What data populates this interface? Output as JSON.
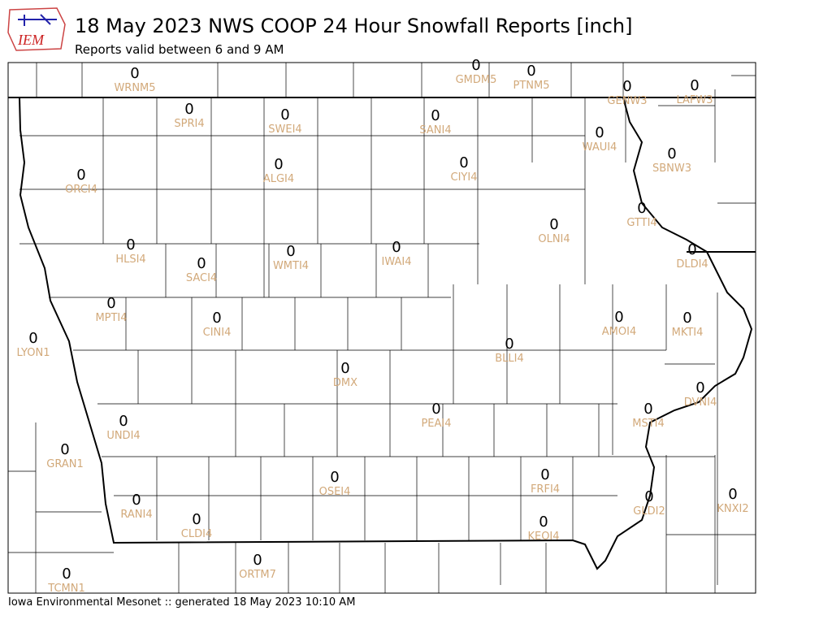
{
  "header": {
    "logo": "IEM",
    "title": "18 May 2023 NWS COOP 24 Hour Snowfall Reports [inch]",
    "subtitle": "Reports valid between 6 and 9 AM"
  },
  "stations": [
    {
      "id": "WRNM5",
      "value": 0
    },
    {
      "id": "GMDM5",
      "value": 0
    },
    {
      "id": "PTNM5",
      "value": 0
    },
    {
      "id": "GENW3",
      "value": 0
    },
    {
      "id": "LAFW3",
      "value": 0
    },
    {
      "id": "SPRI4",
      "value": 0
    },
    {
      "id": "SWEI4",
      "value": 0
    },
    {
      "id": "SANI4",
      "value": 0
    },
    {
      "id": "WAUI4",
      "value": 0
    },
    {
      "id": "SBNW3",
      "value": 0
    },
    {
      "id": "ORCI4",
      "value": 0
    },
    {
      "id": "ALGI4",
      "value": 0
    },
    {
      "id": "CIYI4",
      "value": 0
    },
    {
      "id": "GTTI4",
      "value": 0
    },
    {
      "id": "OLNI4",
      "value": 0
    },
    {
      "id": "HLSI4",
      "value": 0
    },
    {
      "id": "SACI4",
      "value": 0
    },
    {
      "id": "WMTI4",
      "value": 0
    },
    {
      "id": "IWAI4",
      "value": 0
    },
    {
      "id": "DLDI4",
      "value": 0
    },
    {
      "id": "MPTI4",
      "value": 0
    },
    {
      "id": "CINI4",
      "value": 0
    },
    {
      "id": "AMOI4",
      "value": 0
    },
    {
      "id": "MKTI4",
      "value": 0
    },
    {
      "id": "LYON1",
      "value": 0
    },
    {
      "id": "BLLI4",
      "value": 0
    },
    {
      "id": "DMX",
      "value": 0
    },
    {
      "id": "DVNI4",
      "value": 0
    },
    {
      "id": "PEAI4",
      "value": 0
    },
    {
      "id": "MSTI4",
      "value": 0
    },
    {
      "id": "UNDI4",
      "value": 0
    },
    {
      "id": "GRAN1",
      "value": 0
    },
    {
      "id": "OSEI4",
      "value": 0
    },
    {
      "id": "FRFI4",
      "value": 0
    },
    {
      "id": "RANI4",
      "value": 0
    },
    {
      "id": "GLDI2",
      "value": 0
    },
    {
      "id": "KNXI2",
      "value": 0
    },
    {
      "id": "CLDI4",
      "value": 0
    },
    {
      "id": "KEOI4",
      "value": 0
    },
    {
      "id": "ORTM7",
      "value": 0
    },
    {
      "id": "TCMN1",
      "value": 0
    }
  ],
  "footer": "Iowa Environmental Mesonet :: generated 18 May 2023 10:10 AM"
}
